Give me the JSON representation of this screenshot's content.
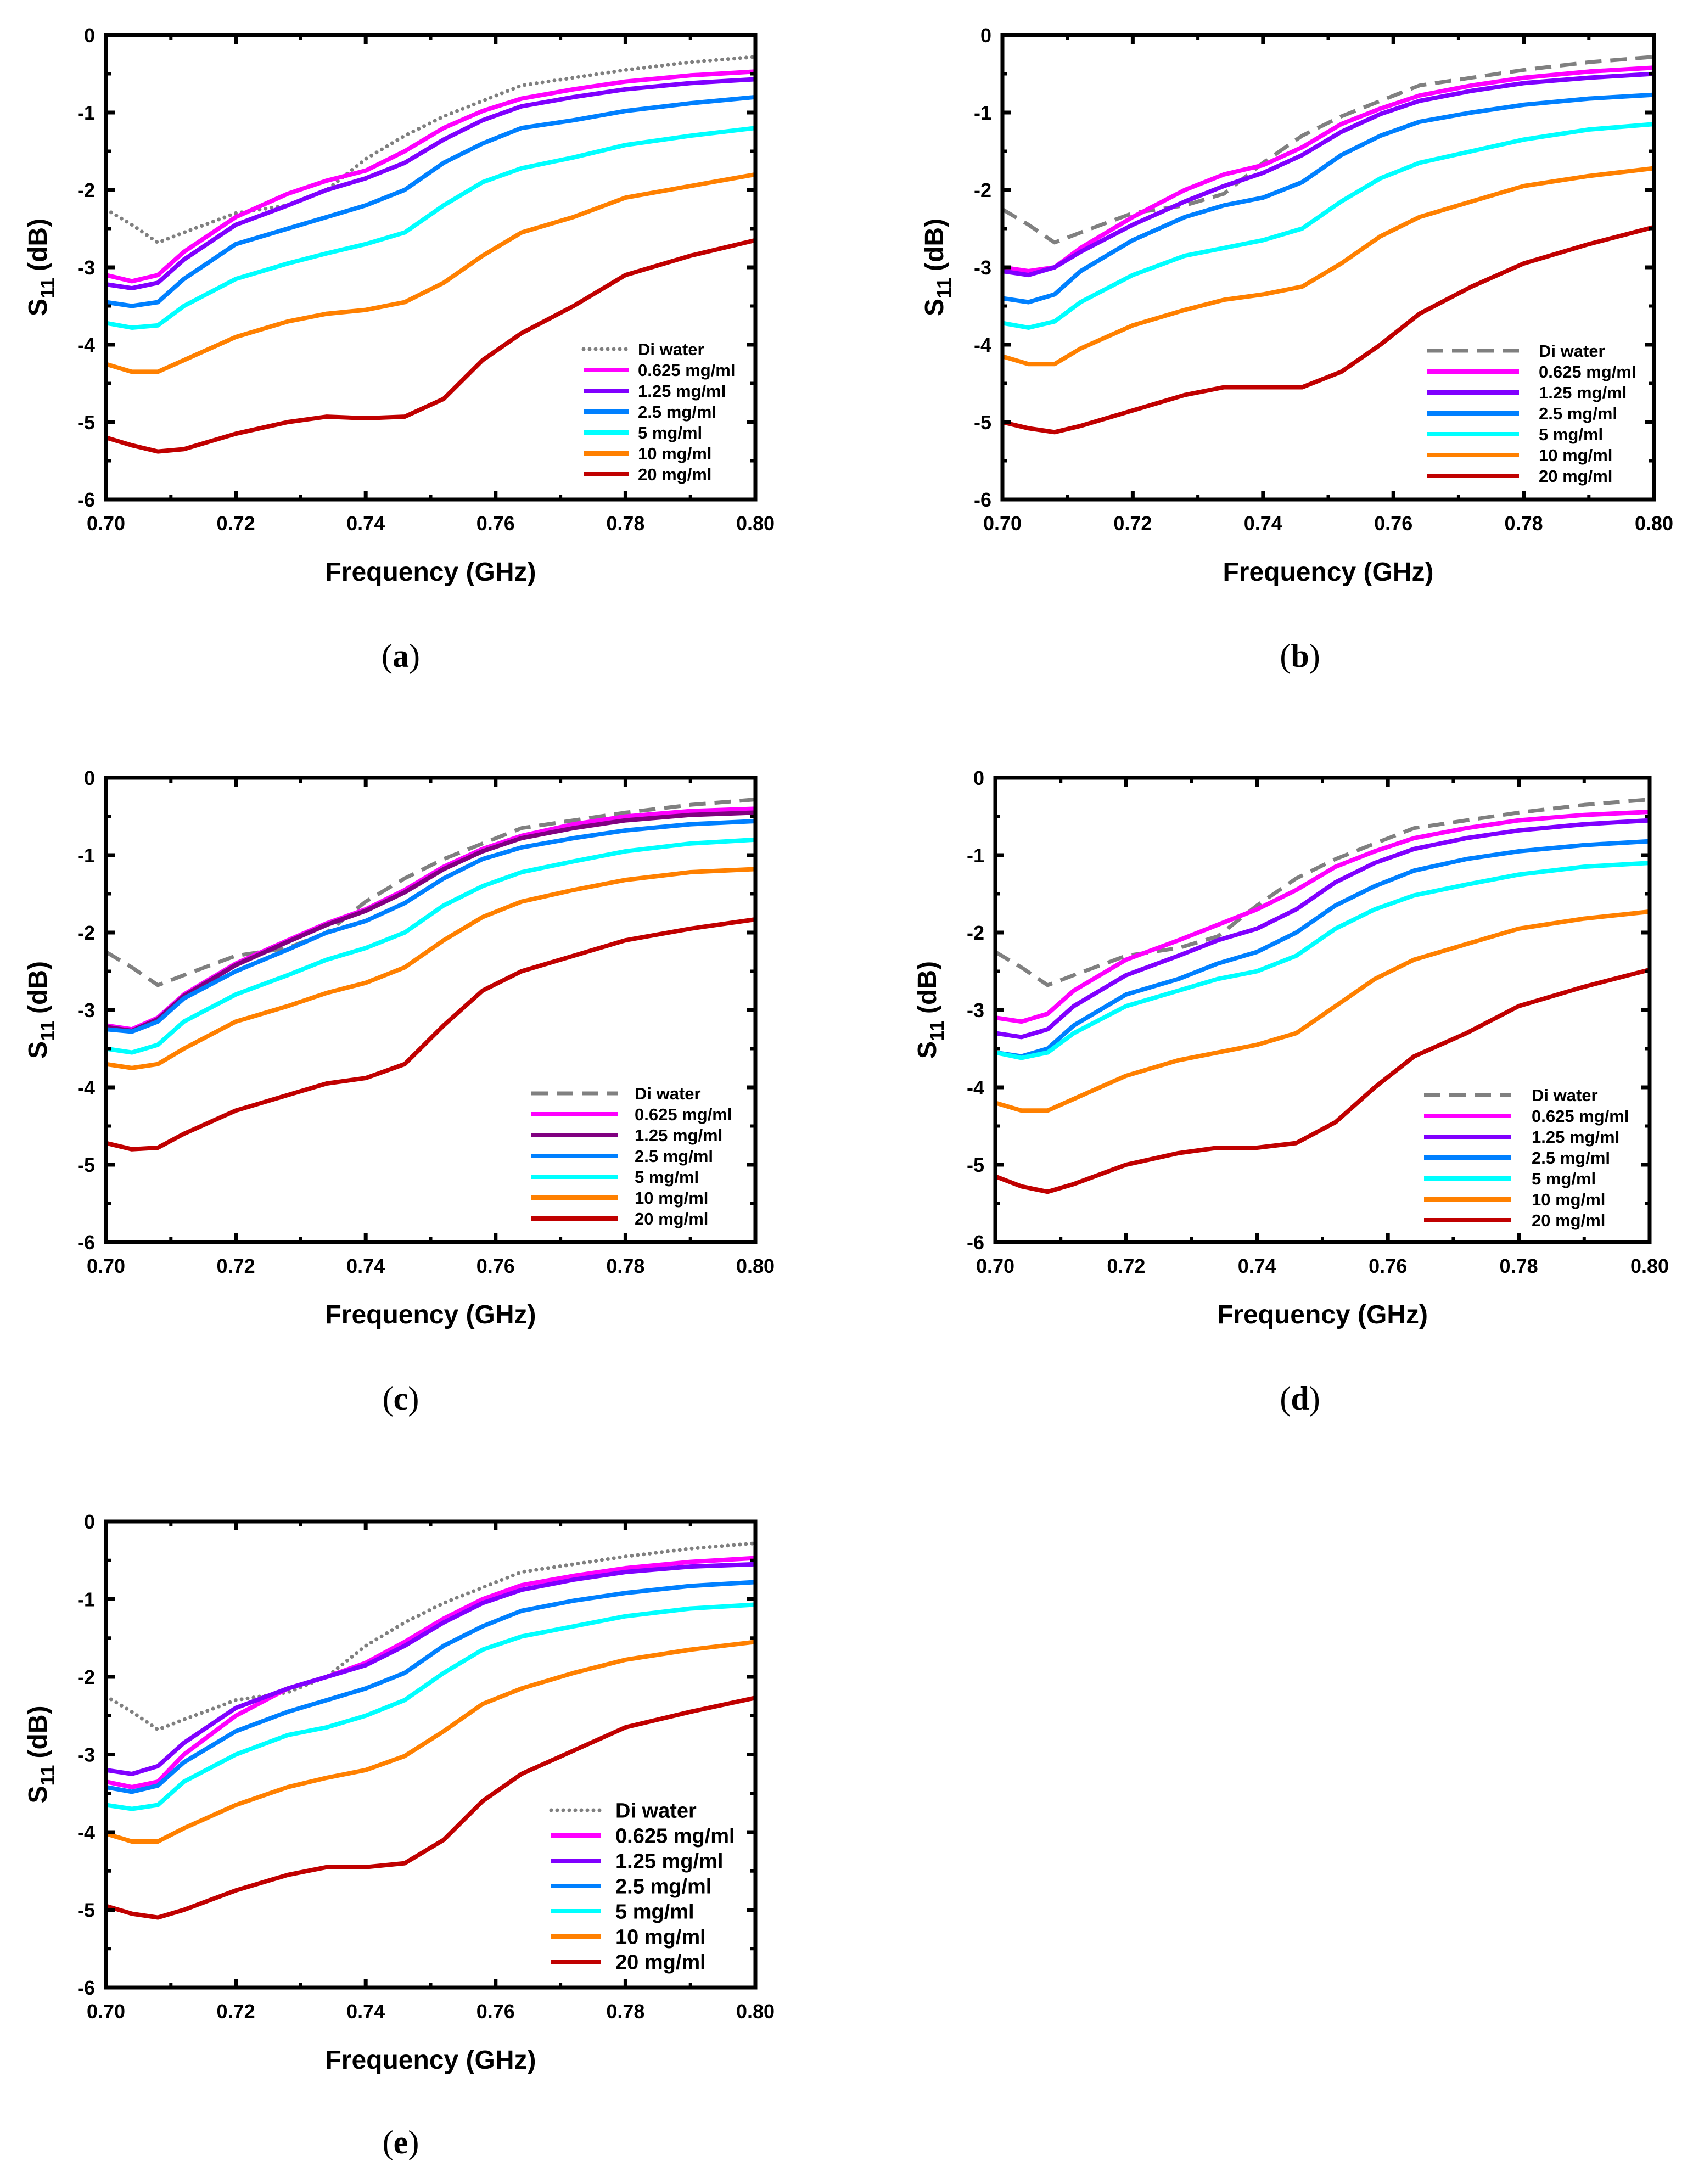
{
  "chart_data": [
    {
      "type": "line",
      "panel_label": "a",
      "di_style": "dotted",
      "xlabel": "Frequency (GHz)",
      "ylabel_main": "S",
      "ylabel_sub": "11",
      "ylabel_unit": "(dB)",
      "xlim": [
        0.7,
        0.8
      ],
      "ylim": [
        -6,
        0
      ],
      "xticks": [
        "0.70",
        "0.72",
        "0.74",
        "0.76",
        "0.78",
        "0.80"
      ],
      "yticks": [
        "0",
        "-1",
        "-2",
        "-3",
        "-4",
        "-5",
        "-6"
      ],
      "legend_position": "bottom-right",
      "x": [
        0.7,
        0.704,
        0.708,
        0.712,
        0.72,
        0.728,
        0.734,
        0.74,
        0.746,
        0.752,
        0.758,
        0.764,
        0.772,
        0.78,
        0.79,
        0.8
      ],
      "series": [
        {
          "name": "Di water",
          "color": "#808080",
          "values": [
            -2.25,
            -2.45,
            -2.68,
            -2.55,
            -2.3,
            -2.2,
            -2.0,
            -1.6,
            -1.3,
            -1.05,
            -0.85,
            -0.65,
            -0.55,
            -0.45,
            -0.35,
            -0.28
          ]
        },
        {
          "name": "0.625 mg/ml",
          "color": "#ff00ff",
          "values": [
            -3.1,
            -3.18,
            -3.1,
            -2.8,
            -2.35,
            -2.05,
            -1.88,
            -1.75,
            -1.5,
            -1.2,
            -0.98,
            -0.82,
            -0.7,
            -0.6,
            -0.52,
            -0.47
          ]
        },
        {
          "name": "1.25 mg/ml",
          "color": "#8000ff",
          "values": [
            -3.22,
            -3.27,
            -3.2,
            -2.9,
            -2.45,
            -2.2,
            -2.0,
            -1.85,
            -1.65,
            -1.35,
            -1.1,
            -0.92,
            -0.8,
            -0.7,
            -0.62,
            -0.57
          ]
        },
        {
          "name": "2.5 mg/ml",
          "color": "#0080ff",
          "values": [
            -3.45,
            -3.5,
            -3.45,
            -3.15,
            -2.7,
            -2.5,
            -2.35,
            -2.2,
            -2.0,
            -1.65,
            -1.4,
            -1.2,
            -1.1,
            -0.98,
            -0.88,
            -0.8
          ]
        },
        {
          "name": "5 mg/ml",
          "color": "#00ffff",
          "values": [
            -3.72,
            -3.78,
            -3.75,
            -3.5,
            -3.15,
            -2.95,
            -2.82,
            -2.7,
            -2.55,
            -2.2,
            -1.9,
            -1.72,
            -1.58,
            -1.42,
            -1.3,
            -1.2
          ]
        },
        {
          "name": "10 mg/ml",
          "color": "#ff8000",
          "values": [
            -4.25,
            -4.35,
            -4.35,
            -4.2,
            -3.9,
            -3.7,
            -3.6,
            -3.55,
            -3.45,
            -3.2,
            -2.85,
            -2.55,
            -2.35,
            -2.1,
            -1.95,
            -1.8
          ]
        },
        {
          "name": "20 mg/ml",
          "color": "#c00000",
          "values": [
            -5.2,
            -5.3,
            -5.38,
            -5.35,
            -5.15,
            -5.0,
            -4.93,
            -4.95,
            -4.93,
            -4.7,
            -4.2,
            -3.85,
            -3.5,
            -3.1,
            -2.85,
            -2.65
          ]
        }
      ]
    },
    {
      "type": "line",
      "panel_label": "b",
      "di_style": "dashed",
      "xlabel": "Frequency (GHz)",
      "ylabel_main": "S",
      "ylabel_sub": "11",
      "ylabel_unit": "(dB)",
      "xlim": [
        0.7,
        0.8
      ],
      "ylim": [
        -6,
        0
      ],
      "xticks": [
        "0.70",
        "0.72",
        "0.74",
        "0.76",
        "0.78",
        "0.80"
      ],
      "yticks": [
        "0",
        "-1",
        "-2",
        "-3",
        "-4",
        "-5",
        "-6"
      ],
      "legend_position": "bottom-right",
      "x": [
        0.7,
        0.704,
        0.708,
        0.712,
        0.72,
        0.728,
        0.734,
        0.74,
        0.746,
        0.752,
        0.758,
        0.764,
        0.772,
        0.78,
        0.79,
        0.8
      ],
      "series": [
        {
          "name": "Di water",
          "color": "#808080",
          "values": [
            -2.25,
            -2.45,
            -2.68,
            -2.55,
            -2.3,
            -2.2,
            -2.05,
            -1.65,
            -1.3,
            -1.05,
            -0.85,
            -0.65,
            -0.55,
            -0.45,
            -0.35,
            -0.28
          ]
        },
        {
          "name": "0.625 mg/ml",
          "color": "#ff00ff",
          "values": [
            -3.0,
            -3.05,
            -3.0,
            -2.75,
            -2.35,
            -2.0,
            -1.8,
            -1.68,
            -1.45,
            -1.15,
            -0.95,
            -0.78,
            -0.65,
            -0.55,
            -0.47,
            -0.42
          ]
        },
        {
          "name": "1.25 mg/ml",
          "color": "#8000ff",
          "values": [
            -3.05,
            -3.1,
            -3.0,
            -2.8,
            -2.45,
            -2.15,
            -1.95,
            -1.78,
            -1.55,
            -1.25,
            -1.02,
            -0.85,
            -0.72,
            -0.62,
            -0.55,
            -0.5
          ]
        },
        {
          "name": "2.5 mg/ml",
          "color": "#0080ff",
          "values": [
            -3.4,
            -3.45,
            -3.35,
            -3.05,
            -2.65,
            -2.35,
            -2.2,
            -2.1,
            -1.9,
            -1.55,
            -1.3,
            -1.12,
            -1.0,
            -0.9,
            -0.82,
            -0.77
          ]
        },
        {
          "name": "5 mg/ml",
          "color": "#00ffff",
          "values": [
            -3.72,
            -3.78,
            -3.7,
            -3.45,
            -3.1,
            -2.85,
            -2.75,
            -2.65,
            -2.5,
            -2.15,
            -1.85,
            -1.65,
            -1.5,
            -1.35,
            -1.22,
            -1.15
          ]
        },
        {
          "name": "10 mg/ml",
          "color": "#ff8000",
          "values": [
            -4.15,
            -4.25,
            -4.25,
            -4.05,
            -3.75,
            -3.55,
            -3.42,
            -3.35,
            -3.25,
            -2.95,
            -2.6,
            -2.35,
            -2.15,
            -1.95,
            -1.82,
            -1.72
          ]
        },
        {
          "name": "20 mg/ml",
          "color": "#c00000",
          "values": [
            -5.0,
            -5.08,
            -5.13,
            -5.05,
            -4.85,
            -4.65,
            -4.55,
            -4.55,
            -4.55,
            -4.35,
            -4.0,
            -3.6,
            -3.25,
            -2.95,
            -2.7,
            -2.48
          ]
        }
      ]
    },
    {
      "type": "line",
      "panel_label": "c",
      "di_style": "dashed",
      "xlabel": "Frequency (GHz)",
      "ylabel_main": "S",
      "ylabel_sub": "11",
      "ylabel_unit": "(dB)",
      "xlim": [
        0.7,
        0.8
      ],
      "ylim": [
        -6,
        0
      ],
      "xticks": [
        "0.70",
        "0.72",
        "0.74",
        "0.76",
        "0.78",
        "0.80"
      ],
      "yticks": [
        "0",
        "-1",
        "-2",
        "-3",
        "-4",
        "-5",
        "-6"
      ],
      "legend_position": "bottom-right",
      "x": [
        0.7,
        0.704,
        0.708,
        0.712,
        0.72,
        0.728,
        0.734,
        0.74,
        0.746,
        0.752,
        0.758,
        0.764,
        0.772,
        0.78,
        0.79,
        0.8
      ],
      "series": [
        {
          "name": "Di water",
          "color": "#808080",
          "values": [
            -2.25,
            -2.45,
            -2.68,
            -2.55,
            -2.3,
            -2.2,
            -2.0,
            -1.6,
            -1.3,
            -1.05,
            -0.85,
            -0.65,
            -0.55,
            -0.45,
            -0.35,
            -0.28
          ]
        },
        {
          "name": "0.625 mg/ml",
          "color": "#ff00ff",
          "values": [
            -3.2,
            -3.25,
            -3.1,
            -2.8,
            -2.4,
            -2.1,
            -1.88,
            -1.7,
            -1.45,
            -1.15,
            -0.92,
            -0.75,
            -0.6,
            -0.5,
            -0.43,
            -0.4
          ]
        },
        {
          "name": "1.25 mg/ml",
          "color": "#800080",
          "values": [
            -3.22,
            -3.27,
            -3.12,
            -2.82,
            -2.42,
            -2.12,
            -1.9,
            -1.72,
            -1.48,
            -1.18,
            -0.95,
            -0.78,
            -0.65,
            -0.55,
            -0.48,
            -0.45
          ]
        },
        {
          "name": "2.5 mg/ml",
          "color": "#0080ff",
          "values": [
            -3.25,
            -3.28,
            -3.15,
            -2.85,
            -2.5,
            -2.22,
            -2.0,
            -1.85,
            -1.62,
            -1.3,
            -1.05,
            -0.9,
            -0.78,
            -0.68,
            -0.6,
            -0.56
          ]
        },
        {
          "name": "5 mg/ml",
          "color": "#00ffff",
          "values": [
            -3.5,
            -3.55,
            -3.45,
            -3.15,
            -2.8,
            -2.55,
            -2.35,
            -2.2,
            -2.0,
            -1.65,
            -1.4,
            -1.22,
            -1.08,
            -0.95,
            -0.85,
            -0.8
          ]
        },
        {
          "name": "10 mg/ml",
          "color": "#ff8000",
          "values": [
            -3.7,
            -3.75,
            -3.7,
            -3.5,
            -3.15,
            -2.95,
            -2.78,
            -2.65,
            -2.45,
            -2.1,
            -1.8,
            -1.6,
            -1.45,
            -1.32,
            -1.22,
            -1.18
          ]
        },
        {
          "name": "20 mg/ml",
          "color": "#c00000",
          "values": [
            -4.72,
            -4.8,
            -4.78,
            -4.6,
            -4.3,
            -4.1,
            -3.95,
            -3.88,
            -3.7,
            -3.2,
            -2.75,
            -2.5,
            -2.3,
            -2.1,
            -1.95,
            -1.83
          ]
        }
      ]
    },
    {
      "type": "line",
      "panel_label": "d",
      "di_style": "dashed",
      "xlabel": "Frequency (GHz)",
      "ylabel_main": "S",
      "ylabel_sub": "11",
      "ylabel_unit": "(dB)",
      "xlim": [
        0.7,
        0.8
      ],
      "ylim": [
        -6,
        0
      ],
      "xticks": [
        "0.70",
        "0.72",
        "0.74",
        "0.76",
        "0.78",
        "0.80"
      ],
      "yticks": [
        "0",
        "-1",
        "-2",
        "-3",
        "-4",
        "-5",
        "-6"
      ],
      "legend_position": "bottom-right",
      "x": [
        0.7,
        0.704,
        0.708,
        0.712,
        0.72,
        0.728,
        0.734,
        0.74,
        0.746,
        0.752,
        0.758,
        0.764,
        0.772,
        0.78,
        0.79,
        0.8
      ],
      "series": [
        {
          "name": "Di water",
          "color": "#808080",
          "values": [
            -2.25,
            -2.45,
            -2.68,
            -2.55,
            -2.3,
            -2.2,
            -2.05,
            -1.65,
            -1.3,
            -1.05,
            -0.85,
            -0.65,
            -0.55,
            -0.45,
            -0.35,
            -0.28
          ]
        },
        {
          "name": "0.625 mg/ml",
          "color": "#ff00ff",
          "values": [
            -3.1,
            -3.15,
            -3.05,
            -2.75,
            -2.35,
            -2.1,
            -1.9,
            -1.7,
            -1.45,
            -1.15,
            -0.95,
            -0.78,
            -0.65,
            -0.55,
            -0.48,
            -0.44
          ]
        },
        {
          "name": "1.25 mg/ml",
          "color": "#8000ff",
          "values": [
            -3.3,
            -3.35,
            -3.25,
            -2.95,
            -2.55,
            -2.3,
            -2.1,
            -1.95,
            -1.7,
            -1.35,
            -1.1,
            -0.92,
            -0.78,
            -0.68,
            -0.6,
            -0.55
          ]
        },
        {
          "name": "2.5 mg/ml",
          "color": "#0080ff",
          "values": [
            -3.55,
            -3.6,
            -3.5,
            -3.2,
            -2.8,
            -2.6,
            -2.4,
            -2.25,
            -2.0,
            -1.65,
            -1.4,
            -1.2,
            -1.05,
            -0.95,
            -0.87,
            -0.82
          ]
        },
        {
          "name": "5 mg/ml",
          "color": "#00ffff",
          "values": [
            -3.55,
            -3.62,
            -3.55,
            -3.3,
            -2.95,
            -2.75,
            -2.6,
            -2.5,
            -2.3,
            -1.95,
            -1.7,
            -1.52,
            -1.38,
            -1.25,
            -1.15,
            -1.1
          ]
        },
        {
          "name": "10 mg/ml",
          "color": "#ff8000",
          "values": [
            -4.2,
            -4.3,
            -4.3,
            -4.15,
            -3.85,
            -3.65,
            -3.55,
            -3.45,
            -3.3,
            -2.95,
            -2.6,
            -2.35,
            -2.15,
            -1.95,
            -1.82,
            -1.73
          ]
        },
        {
          "name": "20 mg/ml",
          "color": "#c00000",
          "values": [
            -5.15,
            -5.28,
            -5.35,
            -5.25,
            -5.0,
            -4.85,
            -4.78,
            -4.78,
            -4.72,
            -4.45,
            -4.0,
            -3.6,
            -3.3,
            -2.95,
            -2.7,
            -2.48
          ]
        }
      ]
    },
    {
      "type": "line",
      "panel_label": "e",
      "di_style": "dotted",
      "xlabel": "Frequency (GHz)",
      "ylabel_main": "S",
      "ylabel_sub": "11",
      "ylabel_unit": "(dB)",
      "xlim": [
        0.7,
        0.8
      ],
      "ylim": [
        -6,
        0
      ],
      "xticks": [
        "0.70",
        "0.72",
        "0.74",
        "0.76",
        "0.78",
        "0.80"
      ],
      "yticks": [
        "0",
        "-1",
        "-2",
        "-3",
        "-4",
        "-5",
        "-6"
      ],
      "legend_position": "bottom-right",
      "x": [
        0.7,
        0.704,
        0.708,
        0.712,
        0.72,
        0.728,
        0.734,
        0.74,
        0.746,
        0.752,
        0.758,
        0.764,
        0.772,
        0.78,
        0.79,
        0.8
      ],
      "series": [
        {
          "name": "Di water",
          "color": "#808080",
          "values": [
            -2.25,
            -2.45,
            -2.68,
            -2.55,
            -2.3,
            -2.2,
            -2.0,
            -1.6,
            -1.3,
            -1.05,
            -0.85,
            -0.65,
            -0.55,
            -0.45,
            -0.35,
            -0.28
          ]
        },
        {
          "name": "0.625 mg/ml",
          "color": "#ff00ff",
          "values": [
            -3.35,
            -3.42,
            -3.35,
            -3.0,
            -2.5,
            -2.15,
            -2.0,
            -1.82,
            -1.55,
            -1.25,
            -1.0,
            -0.82,
            -0.7,
            -0.6,
            -0.52,
            -0.47
          ]
        },
        {
          "name": "1.25 mg/ml",
          "color": "#8000ff",
          "values": [
            -3.2,
            -3.25,
            -3.15,
            -2.85,
            -2.4,
            -2.15,
            -2.0,
            -1.85,
            -1.6,
            -1.3,
            -1.05,
            -0.88,
            -0.75,
            -0.65,
            -0.58,
            -0.55
          ]
        },
        {
          "name": "2.5 mg/ml",
          "color": "#0080ff",
          "values": [
            -3.42,
            -3.48,
            -3.4,
            -3.1,
            -2.7,
            -2.45,
            -2.3,
            -2.15,
            -1.95,
            -1.6,
            -1.35,
            -1.15,
            -1.02,
            -0.92,
            -0.83,
            -0.78
          ]
        },
        {
          "name": "5 mg/ml",
          "color": "#00ffff",
          "values": [
            -3.65,
            -3.7,
            -3.65,
            -3.35,
            -3.0,
            -2.75,
            -2.65,
            -2.5,
            -2.3,
            -1.95,
            -1.65,
            -1.48,
            -1.35,
            -1.22,
            -1.12,
            -1.07
          ]
        },
        {
          "name": "10 mg/ml",
          "color": "#ff8000",
          "values": [
            -4.02,
            -4.12,
            -4.12,
            -3.95,
            -3.65,
            -3.42,
            -3.3,
            -3.2,
            -3.02,
            -2.7,
            -2.35,
            -2.15,
            -1.95,
            -1.78,
            -1.65,
            -1.55
          ]
        },
        {
          "name": "20 mg/ml",
          "color": "#c00000",
          "values": [
            -4.95,
            -5.05,
            -5.1,
            -5.0,
            -4.75,
            -4.55,
            -4.45,
            -4.45,
            -4.4,
            -4.1,
            -3.6,
            -3.25,
            -2.95,
            -2.65,
            -2.45,
            -2.27
          ]
        }
      ]
    }
  ]
}
